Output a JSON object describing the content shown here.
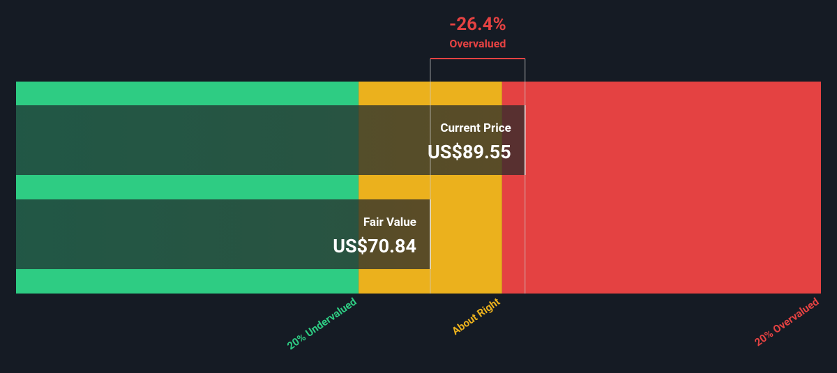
{
  "chart_data": {
    "type": "valuation",
    "categories": [
      "Current Price",
      "Fair Value"
    ],
    "values": [
      89.55,
      70.84
    ],
    "value_labels": [
      "US$89.55",
      "US$70.84"
    ],
    "annotation": {
      "value": -26.4,
      "label": "-26.4%",
      "text": "Overvalued",
      "color": "#e44242"
    },
    "zones": [
      {
        "name": "20% Undervalued",
        "color": "#2ecc83",
        "to": 56.67
      },
      {
        "name": "About Right",
        "color": "#ebb11d",
        "to": 85.01
      },
      {
        "name": "20% Overvalued",
        "color": "#e44242",
        "to": 148
      }
    ],
    "xlim": [
      -11,
      148
    ]
  }
}
